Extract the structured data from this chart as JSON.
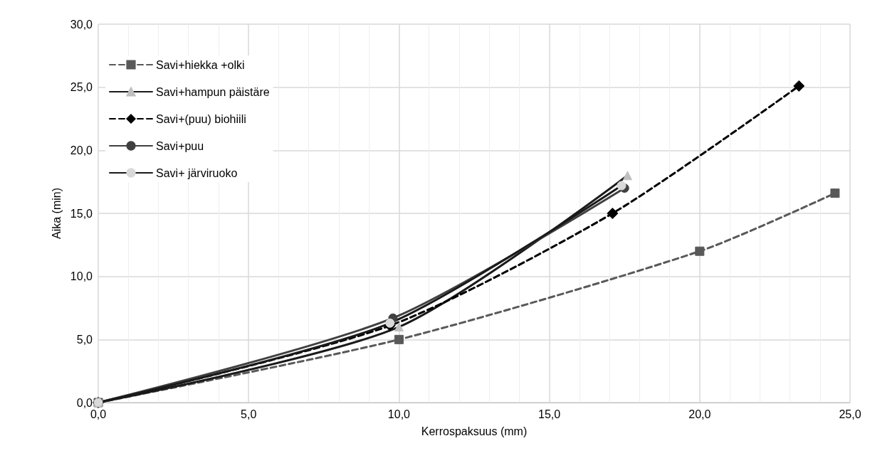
{
  "chart_data": {
    "type": "line",
    "xlabel": "Kerrospaksuus (mm)",
    "ylabel": "Aika (min)",
    "xlim": [
      0,
      25
    ],
    "ylim": [
      0,
      30
    ],
    "xticks": [
      {
        "value": 0,
        "label": "0,0"
      },
      {
        "value": 5,
        "label": "5,0"
      },
      {
        "value": 10,
        "label": "10,0"
      },
      {
        "value": 15,
        "label": "15,0"
      },
      {
        "value": 20,
        "label": "20,0"
      },
      {
        "value": 25,
        "label": "25,0"
      }
    ],
    "yticks": [
      {
        "value": 0,
        "label": "0,0"
      },
      {
        "value": 5,
        "label": "5,0"
      },
      {
        "value": 10,
        "label": "10,0"
      },
      {
        "value": 15,
        "label": "15,0"
      },
      {
        "value": 20,
        "label": "20,0"
      },
      {
        "value": 25,
        "label": "25,0"
      },
      {
        "value": 30,
        "label": "30,0"
      }
    ],
    "grid": true,
    "legend": "top left",
    "series": [
      {
        "name": "Savi+hiekka +olki",
        "color": "#595959",
        "marker": "square",
        "line_style": "dashed",
        "x": [
          0,
          10,
          20,
          24.5
        ],
        "values": [
          0,
          5,
          12,
          16.6
        ]
      },
      {
        "name": "Savi+hampun päistäre",
        "color": "#bfbfbf",
        "marker": "triangle",
        "line_style": "solid",
        "x": [
          0,
          10,
          17.6
        ],
        "values": [
          0,
          6,
          18
        ]
      },
      {
        "name": "Savi+(puu) biohiili",
        "color": "#000000",
        "marker": "diamond",
        "line_style": "dashed",
        "x": [
          0,
          9.7,
          17.1,
          23.3
        ],
        "values": [
          0,
          6.1,
          15,
          25.1
        ]
      },
      {
        "name": "Savi+puu",
        "color": "#404040",
        "marker": "circle",
        "line_style": "solid",
        "x": [
          0,
          9.8,
          17.5
        ],
        "values": [
          0,
          6.7,
          17
        ]
      },
      {
        "name": "Savi+ järviruoko",
        "color": "#d9d9d9",
        "marker": "circle",
        "line_style": "solid",
        "x": [
          0,
          9.7,
          17.4
        ],
        "values": [
          0,
          6.3,
          17.2
        ]
      }
    ]
  }
}
